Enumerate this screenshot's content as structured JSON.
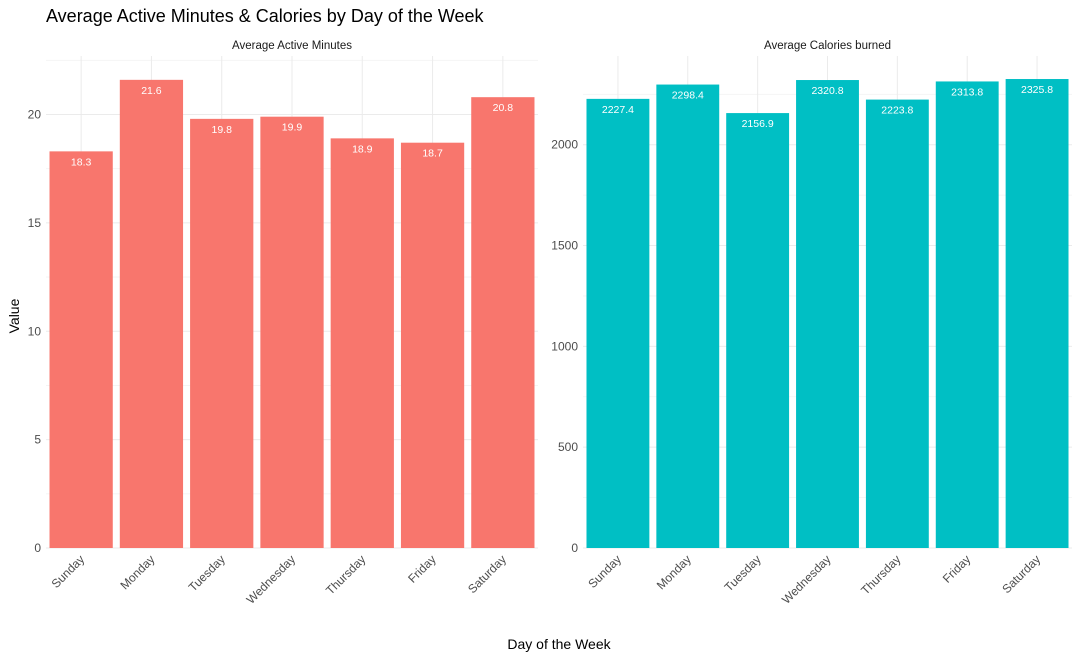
{
  "chart_data": {
    "type": "bar",
    "title": "Average Active Minutes & Calories by Day of the Week",
    "xlabel": "Day of the Week",
    "ylabel": "Value",
    "grid": true,
    "legend": "none",
    "categories": [
      "Sunday",
      "Monday",
      "Tuesday",
      "Wednesday",
      "Thursday",
      "Friday",
      "Saturday"
    ],
    "panels": [
      {
        "name": "Average Active Minutes",
        "color": "#F8766D",
        "values": [
          18.3,
          21.6,
          19.8,
          19.9,
          18.9,
          18.7,
          20.8
        ],
        "value_labels": [
          "18.3",
          "21.6",
          "19.8",
          "19.9",
          "18.9",
          "18.7",
          "20.8"
        ],
        "ylim": [
          0,
          22.7
        ],
        "yticks": [
          0,
          5,
          10,
          15,
          20
        ]
      },
      {
        "name": "Average Calories burned",
        "color": "#00BFC4",
        "values": [
          2227.4,
          2298.4,
          2156.9,
          2320.8,
          2223.8,
          2313.8,
          2325.8
        ],
        "value_labels": [
          "2227.4",
          "2298.4",
          "2156.9",
          "2320.8",
          "2223.8",
          "2313.8",
          "2325.8"
        ],
        "ylim": [
          0,
          2440
        ],
        "yticks": [
          0,
          500,
          1000,
          1500,
          2000
        ]
      }
    ]
  }
}
